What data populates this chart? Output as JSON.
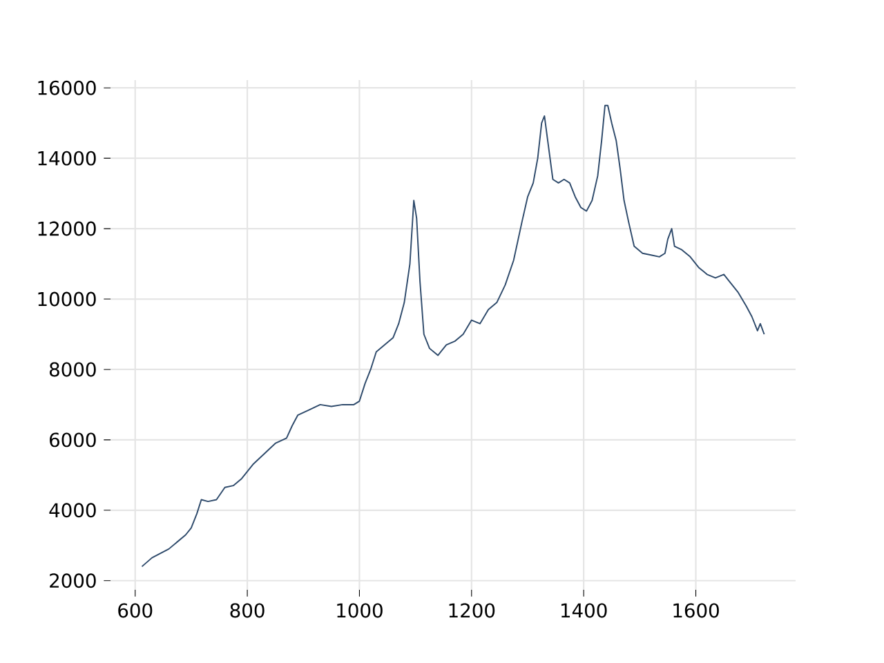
{
  "chart_data": {
    "type": "line",
    "color": "#2e4a6b",
    "grid": true,
    "marker": "none",
    "line_style": "solid",
    "xlim": [
      556,
      1778
    ],
    "ylim": [
      1740,
      16220
    ],
    "xticks": [
      600,
      800,
      1000,
      1200,
      1400,
      1600
    ],
    "yticks": [
      2000,
      4000,
      6000,
      8000,
      10000,
      12000,
      14000,
      16000
    ],
    "x": [
      612,
      630,
      660,
      690,
      700,
      710,
      718,
      730,
      745,
      760,
      775,
      790,
      810,
      830,
      850,
      870,
      880,
      890,
      910,
      930,
      950,
      970,
      990,
      1000,
      1010,
      1020,
      1030,
      1045,
      1060,
      1070,
      1080,
      1090,
      1097,
      1102,
      1108,
      1115,
      1125,
      1140,
      1155,
      1170,
      1185,
      1200,
      1215,
      1230,
      1245,
      1260,
      1275,
      1290,
      1300,
      1310,
      1318,
      1325,
      1330,
      1335,
      1345,
      1355,
      1365,
      1375,
      1385,
      1395,
      1405,
      1415,
      1425,
      1432,
      1438,
      1443,
      1450,
      1458,
      1465,
      1472,
      1480,
      1490,
      1505,
      1520,
      1535,
      1545,
      1550,
      1557,
      1562,
      1575,
      1590,
      1605,
      1620,
      1635,
      1650,
      1660,
      1675,
      1690,
      1700,
      1710,
      1715,
      1722
    ],
    "values": [
      2400,
      2650,
      2900,
      3300,
      3500,
      3900,
      4300,
      4250,
      4300,
      4650,
      4700,
      4900,
      5300,
      5600,
      5900,
      6050,
      6400,
      6700,
      6850,
      7000,
      6950,
      7000,
      7000,
      7100,
      7600,
      8000,
      8500,
      8700,
      8900,
      9300,
      9900,
      11000,
      12800,
      12300,
      10500,
      9000,
      8600,
      8400,
      8700,
      8800,
      9000,
      9400,
      9300,
      9700,
      9900,
      10400,
      11100,
      12200,
      12900,
      13300,
      14000,
      15000,
      15200,
      14600,
      13400,
      13300,
      13400,
      13300,
      12900,
      12600,
      12500,
      12800,
      13500,
      14500,
      15500,
      15500,
      15000,
      14500,
      13700,
      12800,
      12200,
      11500,
      11300,
      11250,
      11200,
      11300,
      11700,
      12000,
      11500,
      11400,
      11200,
      10900,
      10700,
      10600,
      10700,
      10500,
      10200,
      9800,
      9500,
      9100,
      9300,
      9000
    ]
  }
}
